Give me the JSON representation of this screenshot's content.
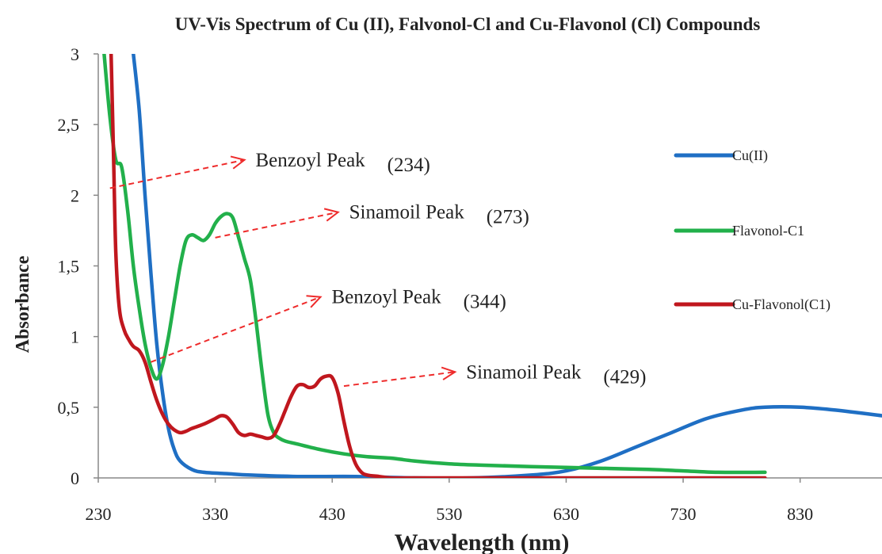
{
  "chart_data": {
    "type": "line",
    "title": "UV-Vis Spectrum of Cu (II), Falvonol-Cl and Cu-Flavonol (Cl) Compounds",
    "xlabel": "Wavelength (nm)",
    "ylabel": "Absorbance",
    "xlim": [
      230,
      900
    ],
    "ylim": [
      0,
      3
    ],
    "x_ticks": [
      "230",
      "330",
      "430",
      "530",
      "630",
      "730",
      "830"
    ],
    "y_ticks": [
      "0",
      "0,5",
      "1",
      "1,5",
      "2",
      "2,5",
      "3"
    ],
    "grid": false,
    "legend_position": "right",
    "series": [
      {
        "name": "Cu(II)",
        "color": "#1f6fc4",
        "x": [
          260,
          265,
          270,
          275,
          280,
          285,
          290,
          295,
          300,
          310,
          320,
          340,
          360,
          400,
          450,
          500,
          550,
          600,
          630,
          660,
          690,
          720,
          750,
          780,
          800,
          830,
          860,
          900
        ],
        "y": [
          3.0,
          2.6,
          2.0,
          1.45,
          0.95,
          0.6,
          0.35,
          0.2,
          0.12,
          0.06,
          0.04,
          0.03,
          0.02,
          0.01,
          0.01,
          0.0,
          0.0,
          0.02,
          0.05,
          0.12,
          0.22,
          0.32,
          0.42,
          0.48,
          0.5,
          0.5,
          0.48,
          0.44
        ]
      },
      {
        "name": "Flavonol-C1",
        "color": "#22b04b",
        "x": [
          235,
          240,
          245,
          250,
          255,
          260,
          265,
          270,
          275,
          280,
          285,
          290,
          295,
          300,
          305,
          310,
          315,
          320,
          325,
          330,
          335,
          340,
          345,
          350,
          355,
          360,
          365,
          370,
          375,
          380,
          385,
          390,
          400,
          420,
          440,
          460,
          480,
          500,
          530,
          560,
          600,
          650,
          700,
          730,
          760,
          800
        ],
        "y": [
          3.0,
          2.55,
          2.25,
          2.2,
          1.9,
          1.5,
          1.2,
          0.95,
          0.78,
          0.7,
          0.8,
          1.0,
          1.25,
          1.5,
          1.68,
          1.72,
          1.7,
          1.68,
          1.72,
          1.8,
          1.85,
          1.87,
          1.84,
          1.7,
          1.55,
          1.4,
          1.1,
          0.75,
          0.45,
          0.32,
          0.28,
          0.26,
          0.24,
          0.2,
          0.17,
          0.15,
          0.14,
          0.12,
          0.1,
          0.09,
          0.08,
          0.07,
          0.06,
          0.05,
          0.04,
          0.04
        ]
      },
      {
        "name": "Cu-Flavonol(C1)",
        "color": "#c0171e",
        "x": [
          241,
          243,
          245,
          248,
          252,
          256,
          260,
          265,
          270,
          275,
          280,
          285,
          290,
          295,
          300,
          305,
          310,
          320,
          330,
          335,
          340,
          345,
          350,
          355,
          360,
          365,
          370,
          375,
          380,
          385,
          390,
          395,
          400,
          405,
          410,
          415,
          420,
          425,
          430,
          435,
          440,
          445,
          450,
          455,
          460,
          470,
          480,
          500,
          550,
          600,
          700,
          800
        ],
        "y": [
          3.0,
          2.3,
          1.6,
          1.2,
          1.05,
          0.98,
          0.93,
          0.9,
          0.82,
          0.68,
          0.55,
          0.45,
          0.38,
          0.34,
          0.32,
          0.33,
          0.35,
          0.38,
          0.42,
          0.44,
          0.43,
          0.38,
          0.32,
          0.3,
          0.31,
          0.3,
          0.29,
          0.28,
          0.3,
          0.38,
          0.48,
          0.58,
          0.65,
          0.66,
          0.64,
          0.65,
          0.7,
          0.72,
          0.71,
          0.6,
          0.4,
          0.22,
          0.1,
          0.04,
          0.02,
          0.01,
          0.0,
          0.0,
          0.0,
          0.0,
          0.0,
          0.0
        ]
      }
    ],
    "annotations": [
      {
        "label": "Benzoyl Peak",
        "value": "(234)",
        "arrow_from": [
          240,
          2.05
        ],
        "arrow_to": [
          355,
          2.25
        ]
      },
      {
        "label": "Sinamoil Peak",
        "value": "(273)",
        "arrow_from": [
          330,
          1.7
        ],
        "arrow_to": [
          435,
          1.88
        ]
      },
      {
        "label": "Benzoyl Peak",
        "value": "(344)",
        "arrow_from": [
          275,
          0.82
        ],
        "arrow_to": [
          420,
          1.28
        ]
      },
      {
        "label": "Sinamoil Peak",
        "value": "(429)",
        "arrow_from": [
          440,
          0.65
        ],
        "arrow_to": [
          535,
          0.75
        ]
      }
    ]
  }
}
